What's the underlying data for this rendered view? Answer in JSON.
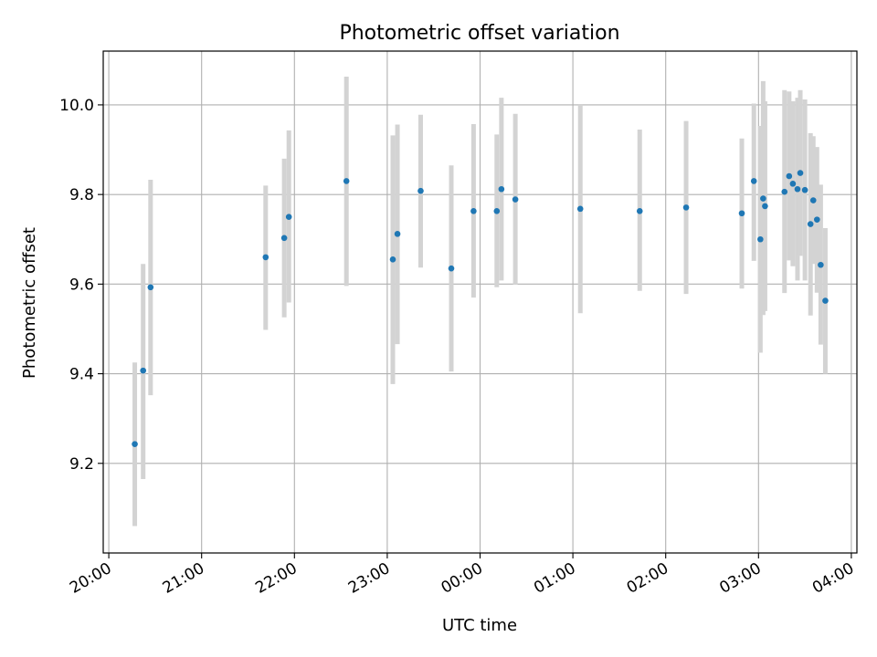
{
  "chart_data": {
    "type": "scatter",
    "title": "Photometric offset variation",
    "xlabel": "UTC time",
    "ylabel": "Photometric offset",
    "grid": true,
    "x_time_unit": "hours since 20:00 UTC",
    "xlim": [
      -0.06,
      8.06
    ],
    "ylim": [
      9.0,
      10.12
    ],
    "xticks": [
      {
        "t": 0,
        "label": "20:00"
      },
      {
        "t": 1,
        "label": "21:00"
      },
      {
        "t": 2,
        "label": "22:00"
      },
      {
        "t": 3,
        "label": "23:00"
      },
      {
        "t": 4,
        "label": "00:00"
      },
      {
        "t": 5,
        "label": "01:00"
      },
      {
        "t": 6,
        "label": "02:00"
      },
      {
        "t": 7,
        "label": "03:00"
      },
      {
        "t": 8,
        "label": "04:00"
      }
    ],
    "yticks": [
      {
        "v": 9.2,
        "label": "9.2"
      },
      {
        "v": 9.4,
        "label": "9.4"
      },
      {
        "v": 9.6,
        "label": "9.6"
      },
      {
        "v": 9.8,
        "label": "9.8"
      },
      {
        "v": 10.0,
        "label": "10.0"
      }
    ],
    "point_color": "#1f77b4",
    "errorbar_color": "#d3d3d3",
    "points": [
      {
        "t": 0.28,
        "y": 9.243,
        "lo": 9.06,
        "hi": 9.425
      },
      {
        "t": 0.37,
        "y": 9.407,
        "lo": 9.165,
        "hi": 9.645
      },
      {
        "t": 0.45,
        "y": 9.593,
        "lo": 9.352,
        "hi": 9.833
      },
      {
        "t": 1.69,
        "y": 9.66,
        "lo": 9.498,
        "hi": 9.82
      },
      {
        "t": 1.89,
        "y": 9.703,
        "lo": 9.526,
        "hi": 9.88
      },
      {
        "t": 1.94,
        "y": 9.75,
        "lo": 9.559,
        "hi": 9.943
      },
      {
        "t": 2.56,
        "y": 9.83,
        "lo": 9.596,
        "hi": 10.063
      },
      {
        "t": 3.06,
        "y": 9.655,
        "lo": 9.377,
        "hi": 9.932
      },
      {
        "t": 3.11,
        "y": 9.712,
        "lo": 9.466,
        "hi": 9.956
      },
      {
        "t": 3.36,
        "y": 9.808,
        "lo": 9.637,
        "hi": 9.978
      },
      {
        "t": 3.69,
        "y": 9.635,
        "lo": 9.405,
        "hi": 9.865
      },
      {
        "t": 3.93,
        "y": 9.763,
        "lo": 9.57,
        "hi": 9.957
      },
      {
        "t": 4.18,
        "y": 9.763,
        "lo": 9.593,
        "hi": 9.934
      },
      {
        "t": 4.23,
        "y": 9.812,
        "lo": 9.608,
        "hi": 10.016
      },
      {
        "t": 4.38,
        "y": 9.789,
        "lo": 9.599,
        "hi": 9.98
      },
      {
        "t": 5.08,
        "y": 9.768,
        "lo": 9.535,
        "hi": 10.0
      },
      {
        "t": 5.72,
        "y": 9.763,
        "lo": 9.585,
        "hi": 9.945
      },
      {
        "t": 6.22,
        "y": 9.771,
        "lo": 9.578,
        "hi": 9.964
      },
      {
        "t": 6.82,
        "y": 9.758,
        "lo": 9.59,
        "hi": 9.925
      },
      {
        "t": 6.95,
        "y": 9.83,
        "lo": 9.652,
        "hi": 10.003
      },
      {
        "t": 7.02,
        "y": 9.7,
        "lo": 9.447,
        "hi": 9.953
      },
      {
        "t": 7.05,
        "y": 9.791,
        "lo": 9.531,
        "hi": 10.053
      },
      {
        "t": 7.07,
        "y": 9.774,
        "lo": 9.54,
        "hi": 10.008
      },
      {
        "t": 7.28,
        "y": 9.806,
        "lo": 9.58,
        "hi": 10.033
      },
      {
        "t": 7.33,
        "y": 9.841,
        "lo": 9.653,
        "hi": 10.03
      },
      {
        "t": 7.37,
        "y": 9.824,
        "lo": 9.64,
        "hi": 10.008
      },
      {
        "t": 7.42,
        "y": 9.812,
        "lo": 9.608,
        "hi": 10.016
      },
      {
        "t": 7.45,
        "y": 9.848,
        "lo": 9.663,
        "hi": 10.033
      },
      {
        "t": 7.5,
        "y": 9.81,
        "lo": 9.608,
        "hi": 10.012
      },
      {
        "t": 7.56,
        "y": 9.734,
        "lo": 9.53,
        "hi": 9.937
      },
      {
        "t": 7.59,
        "y": 9.787,
        "lo": 9.645,
        "hi": 9.93
      },
      {
        "t": 7.63,
        "y": 9.744,
        "lo": 9.581,
        "hi": 9.906
      },
      {
        "t": 7.67,
        "y": 9.643,
        "lo": 9.465,
        "hi": 9.822
      },
      {
        "t": 7.72,
        "y": 9.563,
        "lo": 9.4,
        "hi": 9.725
      }
    ]
  }
}
